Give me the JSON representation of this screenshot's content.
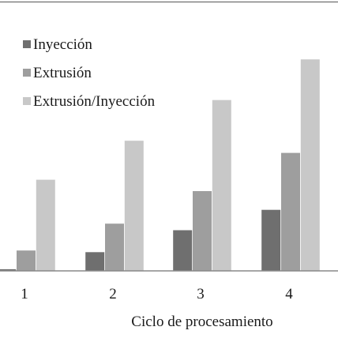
{
  "chart_data": {
    "type": "bar",
    "categories": [
      "1",
      "2",
      "3",
      "4"
    ],
    "series": [
      {
        "name": "Inyección",
        "color": "#6f6f6f",
        "values": [
          0.2,
          2.3,
          5.0,
          7.5
        ]
      },
      {
        "name": "Extrusión",
        "color": "#9e9e9e",
        "values": [
          2.5,
          5.8,
          9.8,
          14.5
        ]
      },
      {
        "name": "Extrusión/Inyección",
        "color": "#c8c8c8",
        "values": [
          11.2,
          16.0,
          21.0,
          26.0
        ]
      }
    ],
    "title": "",
    "xlabel": "Ciclo de procesamiento",
    "ylabel": "",
    "ylim": [
      0,
      26.5
    ],
    "grid": false,
    "legend_position": "top-left"
  }
}
